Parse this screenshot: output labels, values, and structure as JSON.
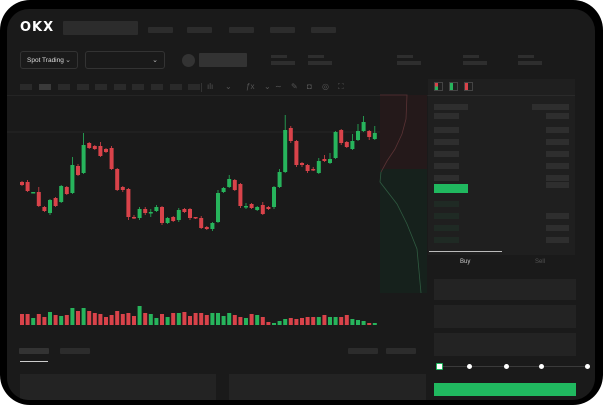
{
  "brand": "OKX",
  "header": {
    "market_dropdown": {
      "label": "Spot Trading",
      "chevron": "chevron-down-icon"
    },
    "pair_dropdown": {
      "chevron": "chevron-down-icon"
    }
  },
  "order_form": {
    "tabs": [
      {
        "label": "Buy",
        "active": true
      },
      {
        "label": "Sell",
        "active": false
      }
    ],
    "slider_level_percent": 0,
    "slider_stops": [
      0,
      25,
      50,
      75,
      100
    ]
  },
  "colors": {
    "up": "#27b45c",
    "down": "#d9434a",
    "background": "#1a1a1a",
    "accent": "#20b85f"
  },
  "chart_data": {
    "type": "candlestick",
    "fields": [
      "open",
      "close",
      "high",
      "low"
    ],
    "candles": [
      [
        68,
        65,
        69,
        64
      ],
      [
        68,
        59,
        70,
        58
      ],
      [
        57,
        58,
        58,
        57
      ],
      [
        58,
        44,
        63,
        43
      ],
      [
        43,
        39,
        44,
        38
      ],
      [
        37,
        50,
        51,
        35
      ],
      [
        52,
        44,
        53,
        43
      ],
      [
        48,
        64,
        65,
        47
      ],
      [
        63,
        56,
        64,
        55
      ],
      [
        57,
        85,
        93,
        56
      ],
      [
        84,
        75,
        86,
        74
      ],
      [
        77,
        105,
        117,
        76
      ],
      [
        107,
        102,
        108,
        101
      ],
      [
        104,
        101,
        105,
        100
      ],
      [
        104,
        94,
        108,
        93
      ],
      [
        101,
        98,
        102,
        97
      ],
      [
        102,
        81,
        104,
        80
      ],
      [
        81,
        60,
        82,
        59
      ],
      [
        63,
        60,
        64,
        58
      ],
      [
        61,
        33,
        62,
        30
      ],
      [
        33,
        32,
        35,
        31
      ],
      [
        32,
        41,
        43,
        30
      ],
      [
        41,
        37,
        43,
        35
      ],
      [
        37,
        38,
        41,
        33
      ],
      [
        39,
        43,
        45,
        38
      ],
      [
        43,
        27,
        44,
        25
      ],
      [
        27,
        32,
        33,
        26
      ],
      [
        33,
        29,
        34,
        28
      ],
      [
        30,
        40,
        42,
        28
      ],
      [
        41,
        38,
        42,
        37
      ],
      [
        41,
        32,
        42,
        30
      ],
      [
        33,
        32,
        33,
        31
      ],
      [
        32,
        22,
        34,
        21
      ],
      [
        23,
        21,
        24,
        20
      ],
      [
        21,
        27,
        28,
        19
      ],
      [
        28,
        57,
        60,
        27
      ],
      [
        58,
        62,
        63,
        57
      ],
      [
        63,
        71,
        75,
        62
      ],
      [
        70,
        60,
        71,
        59
      ],
      [
        66,
        44,
        67,
        42
      ],
      [
        43,
        44,
        47,
        41
      ],
      [
        46,
        42,
        47,
        41
      ],
      [
        40,
        43,
        44,
        39
      ],
      [
        45,
        36,
        48,
        35
      ],
      [
        43,
        41,
        44,
        40
      ],
      [
        43,
        63,
        64,
        41
      ],
      [
        63,
        78,
        81,
        62
      ],
      [
        78,
        120,
        135,
        77
      ],
      [
        122,
        109,
        124,
        107
      ],
      [
        109,
        85,
        110,
        83
      ],
      [
        87,
        85,
        88,
        83
      ],
      [
        85,
        79,
        86,
        77
      ],
      [
        81,
        80,
        83,
        79
      ],
      [
        77,
        89,
        92,
        76
      ],
      [
        91,
        89,
        95,
        88
      ],
      [
        87,
        91,
        97,
        86
      ],
      [
        92,
        118,
        119,
        91
      ],
      [
        120,
        107,
        121,
        105
      ],
      [
        108,
        103,
        109,
        102
      ],
      [
        101,
        109,
        116,
        100
      ],
      [
        110,
        119,
        126,
        109
      ],
      [
        119,
        128,
        134,
        118
      ],
      [
        119,
        113,
        120,
        110
      ],
      [
        111,
        117,
        124,
        110
      ]
    ],
    "volume": [
      11,
      11,
      7,
      11,
      8,
      13,
      10,
      9,
      10,
      17,
      14,
      17,
      14,
      12,
      11,
      8,
      10,
      14,
      11,
      12,
      9,
      19,
      12,
      11,
      7,
      11,
      8,
      12,
      12,
      13,
      9,
      12,
      12,
      10,
      12,
      12,
      9,
      12,
      10,
      8,
      7,
      11,
      10,
      8,
      3,
      2,
      4,
      6,
      7,
      6,
      7,
      8,
      8,
      8,
      10,
      8,
      8,
      8,
      10,
      6,
      5,
      4,
      2,
      2
    ]
  }
}
